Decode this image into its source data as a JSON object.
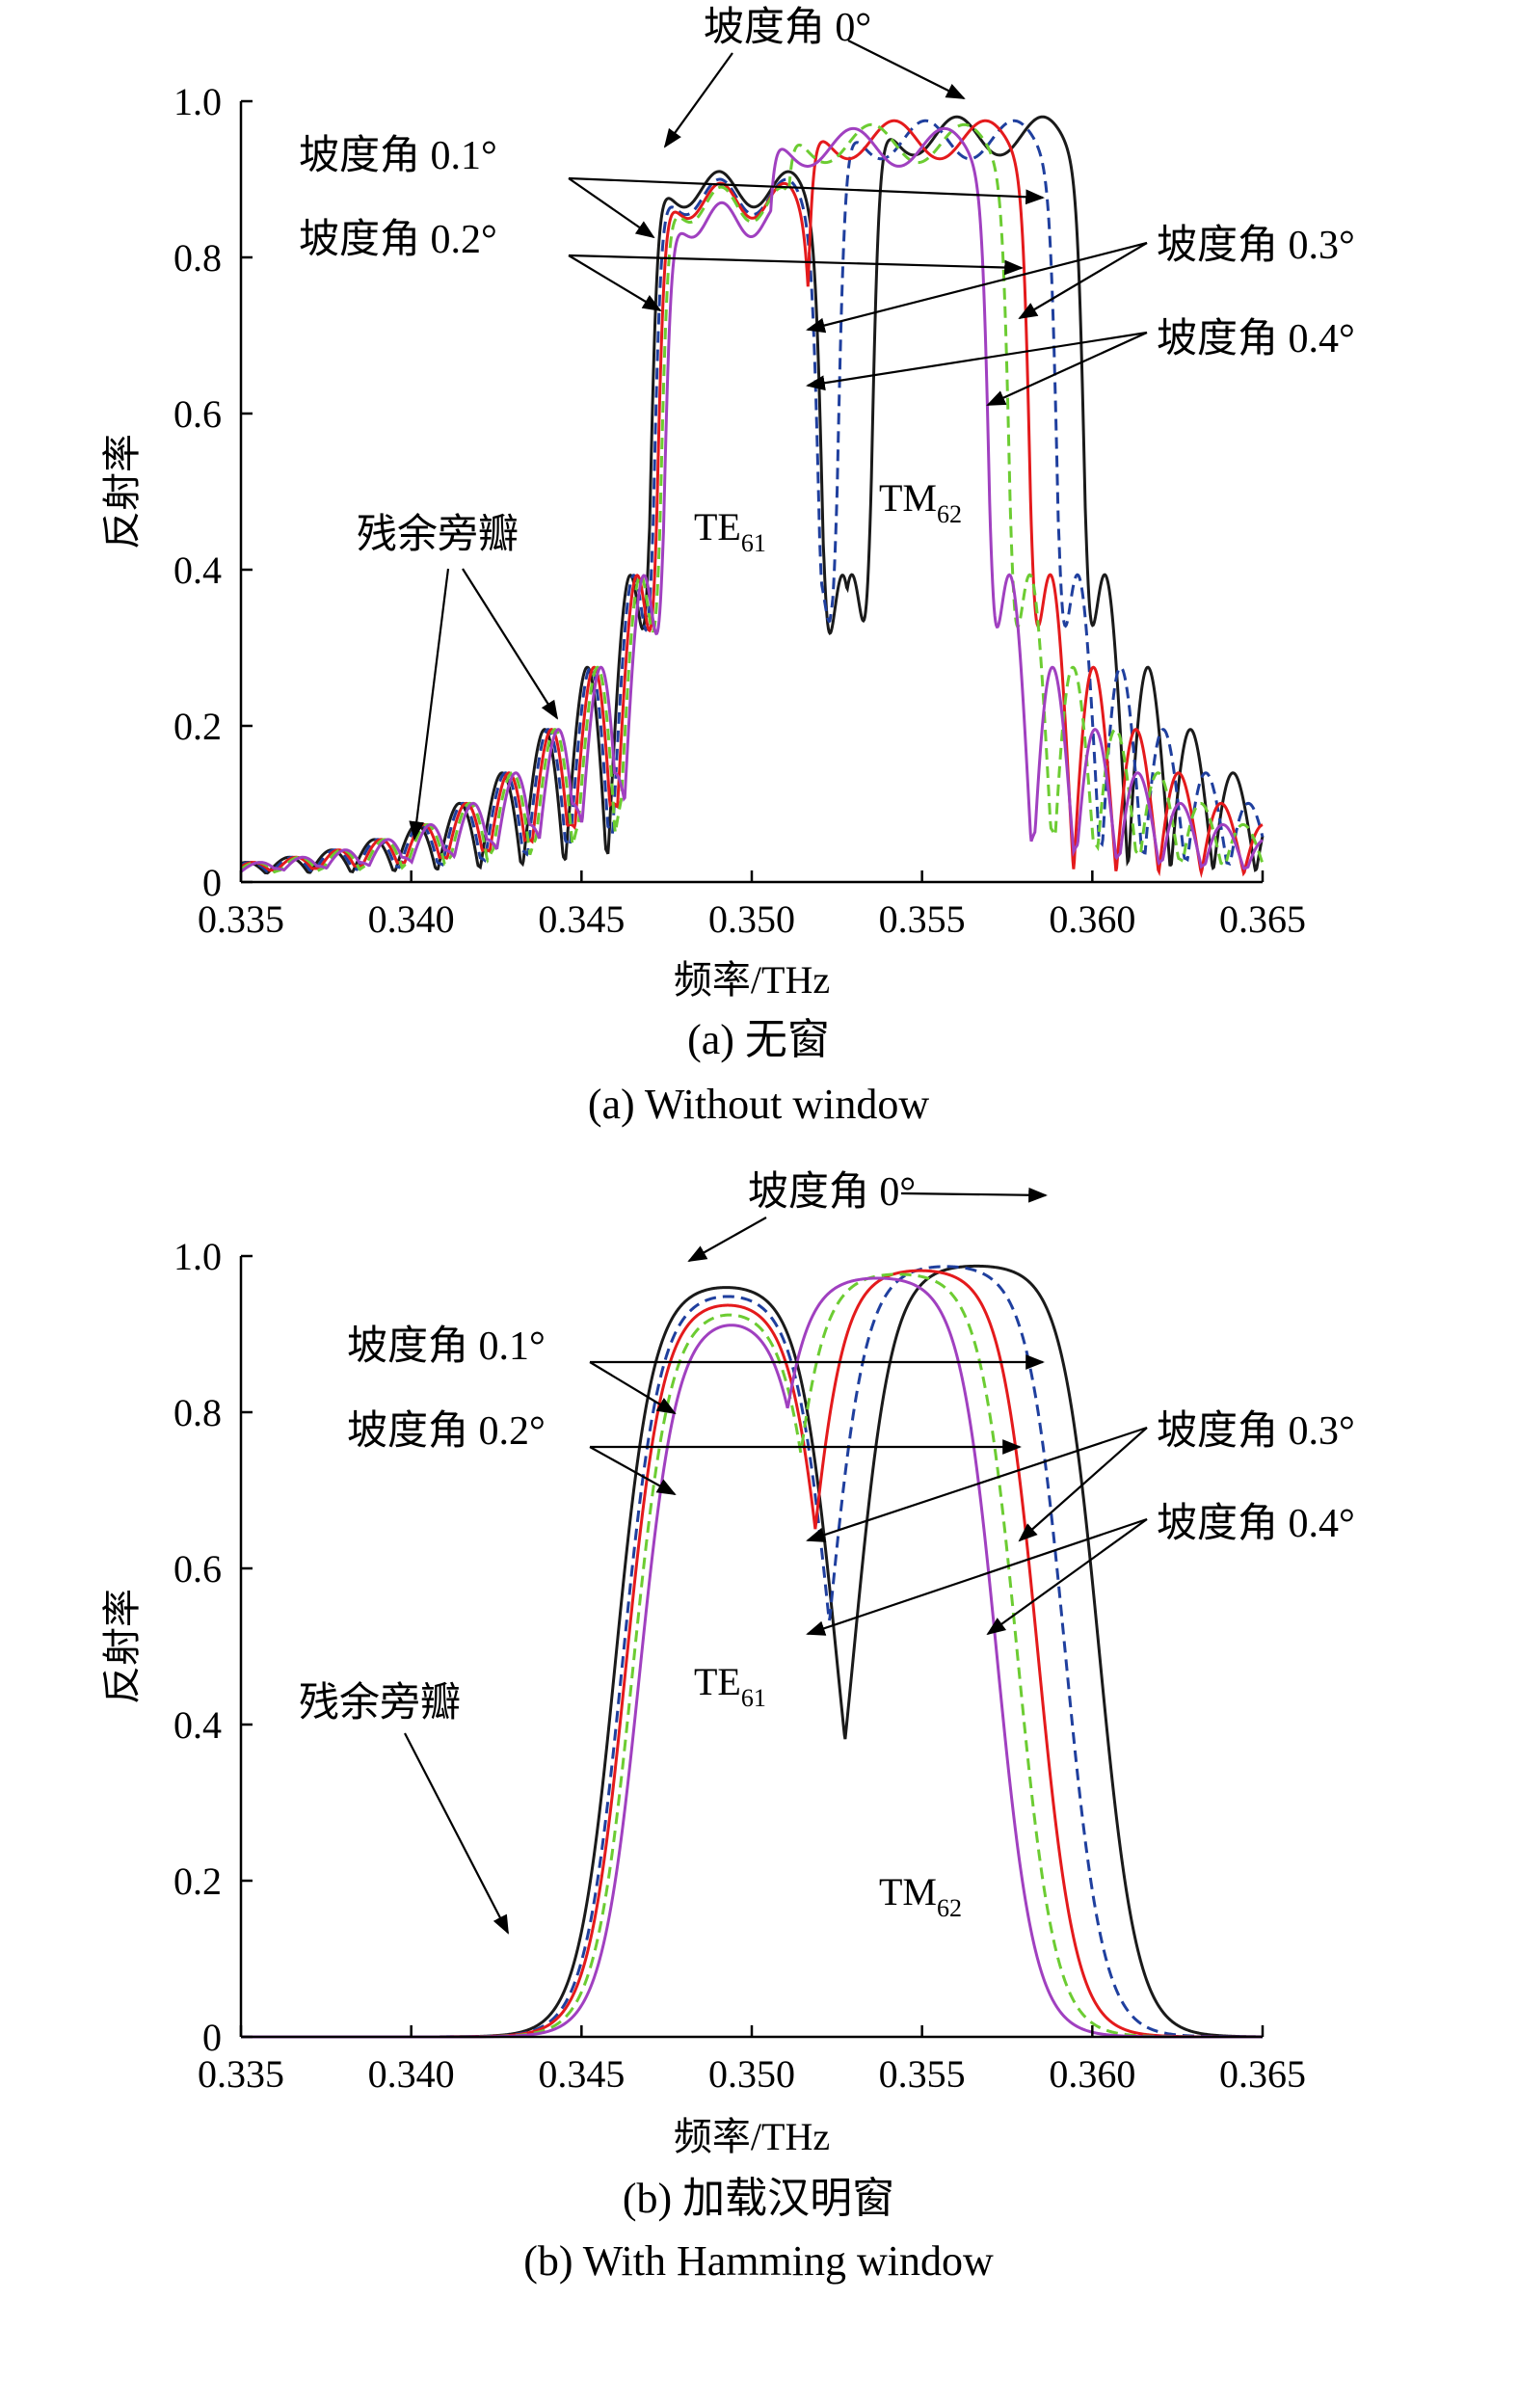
{
  "chart_data": [
    {
      "type": "line",
      "panel": "a",
      "caption_cn": "(a) 无窗",
      "caption_en": "(a) Without window",
      "xlabel": "频率/THz",
      "ylabel": "反射率",
      "xlim": [
        0.335,
        0.365
      ],
      "ylim": [
        0,
        1.0
      ],
      "xticks": [
        "0.335",
        "0.340",
        "0.345",
        "0.350",
        "0.355",
        "0.360",
        "0.365"
      ],
      "yticks": [
        "0",
        "0.2",
        "0.4",
        "0.6",
        "0.8",
        "1.0"
      ],
      "grid": false,
      "window": "none",
      "series": [
        {
          "name": "坡度角 0°",
          "color": "#1a1a1a",
          "dash": "solid",
          "te": [
            0.347,
            0.3521,
            0.91
          ],
          "tm": [
            0.3535,
            0.3598,
            0.98
          ]
        },
        {
          "name": "坡度角 0.1°",
          "color": "#1f3f9e",
          "dash": "dashed",
          "te": [
            0.3471,
            0.352,
            0.9
          ],
          "tm": [
            0.3525,
            0.359,
            0.975
          ]
        },
        {
          "name": "坡度角 0.2°",
          "color": "#e41a1c",
          "dash": "solid",
          "te": [
            0.3472,
            0.3519,
            0.895
          ],
          "tm": [
            0.3515,
            0.3582,
            0.975
          ]
        },
        {
          "name": "坡度角 0.3°",
          "color": "#6ccc32",
          "dash": "dashed",
          "te": [
            0.3473,
            0.3518,
            0.89
          ],
          "tm": [
            0.3508,
            0.3576,
            0.97
          ]
        },
        {
          "name": "坡度角 0.4°",
          "color": "#a040c0",
          "dash": "solid",
          "te": [
            0.3474,
            0.3517,
            0.87
          ],
          "tm": [
            0.3503,
            0.357,
            0.965
          ]
        }
      ],
      "annotations": {
        "angle0": "坡度角 0°",
        "angle01": "坡度角 0.1°",
        "angle02": "坡度角 0.2°",
        "angle03": "坡度角 0.3°",
        "angle04": "坡度角 0.4°",
        "sidelobe": "残余旁瓣",
        "te_mode": "TE",
        "te_sub": "61",
        "tm_mode": "TM",
        "tm_sub": "62"
      }
    },
    {
      "type": "line",
      "panel": "b",
      "caption_cn": "(b) 加载汉明窗",
      "caption_en": "(b) With Hamming window",
      "xlabel": "频率/THz",
      "ylabel": "反射率",
      "xlim": [
        0.335,
        0.365
      ],
      "ylim": [
        0,
        1.0
      ],
      "xticks": [
        "0.335",
        "0.340",
        "0.345",
        "0.350",
        "0.355",
        "0.360",
        "0.365"
      ],
      "yticks": [
        "0",
        "0.2",
        "0.4",
        "0.6",
        "0.8",
        "1.0"
      ],
      "grid": false,
      "window": "hamming",
      "series": [
        {
          "name": "坡度角 0°",
          "color": "#1a1a1a",
          "dash": "solid",
          "te": [
            0.346,
            0.3525,
            0.965
          ],
          "tm": [
            0.353,
            0.3602,
            0.99
          ]
        },
        {
          "name": "坡度角 0.1°",
          "color": "#1f3f9e",
          "dash": "dashed",
          "te": [
            0.3462,
            0.3524,
            0.955
          ],
          "tm": [
            0.3522,
            0.3592,
            0.99
          ]
        },
        {
          "name": "坡度角 0.2°",
          "color": "#e41a1c",
          "dash": "solid",
          "te": [
            0.3463,
            0.3523,
            0.945
          ],
          "tm": [
            0.3515,
            0.3584,
            0.985
          ]
        },
        {
          "name": "坡度角 0.3°",
          "color": "#6ccc32",
          "dash": "dashed",
          "te": [
            0.3465,
            0.3522,
            0.935
          ],
          "tm": [
            0.3508,
            0.3578,
            0.98
          ]
        },
        {
          "name": "坡度角 0.4°",
          "color": "#a040c0",
          "dash": "solid",
          "te": [
            0.3467,
            0.3521,
            0.925
          ],
          "tm": [
            0.3502,
            0.3572,
            0.975
          ]
        }
      ],
      "annotations": {
        "angle0": "坡度角 0°",
        "angle01": "坡度角 0.1°",
        "angle02": "坡度角 0.2°",
        "angle03": "坡度角 0.3°",
        "angle04": "坡度角 0.4°",
        "sidelobe": "残余旁瓣",
        "te_mode": "TE",
        "te_sub": "61",
        "tm_mode": "TM",
        "tm_sub": "62"
      }
    }
  ]
}
